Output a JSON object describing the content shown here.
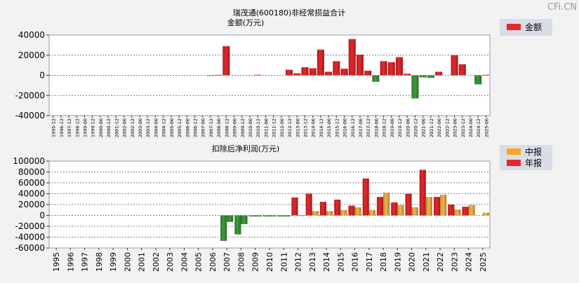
{
  "watermark": "CFi.CN",
  "chart_data": [
    {
      "type": "bar",
      "title": "瑞茂通(600180)非经常损益合计",
      "ylabel": "金额(万元)",
      "legend": [
        {
          "name": "金额",
          "color": "#e8272a"
        }
      ],
      "ylim": [
        -40000,
        40000
      ],
      "yticks": [
        40000,
        20000,
        0,
        -20000,
        -40000
      ],
      "ytick_labels": [
        "40000",
        "20000",
        "0",
        "-20000",
        "-40000"
      ],
      "categories": [
        "1995-12",
        "1996-12",
        "1997-12",
        "1998-12",
        "1999-06",
        "1999-12",
        "2000-06",
        "2000-12",
        "2001-12",
        "2002-06",
        "2002-12",
        "2003-06",
        "2003-12",
        "2004-06",
        "2004-12",
        "2005-06",
        "2005-12",
        "2006-06",
        "2006-12",
        "2007-06",
        "2007-12",
        "2008-06",
        "2008-12",
        "2009-06",
        "2009-12",
        "2010-06",
        "2010-12",
        "2011-06",
        "2011-12",
        "2012-06",
        "2012-12",
        "2013-06",
        "2013-12",
        "2014-06",
        "2014-12",
        "2015-06",
        "2015-12",
        "2016-06",
        "2016-12",
        "2017-06",
        "2017-12",
        "2018-06",
        "2018-12",
        "2019-06",
        "2019-12",
        "2020-06",
        "2020-12",
        "2021-06",
        "2021-12",
        "2022-06",
        "2022-12",
        "2023-06",
        "2023-12",
        "2024-06",
        "2024-12",
        "2025-06"
      ],
      "values": [
        0,
        0,
        0,
        0,
        0,
        0,
        0,
        0,
        0,
        0,
        0,
        0,
        0,
        0,
        0,
        0,
        0,
        0,
        0,
        0,
        -500,
        500,
        29000,
        0,
        0,
        0,
        600,
        0,
        0,
        0,
        5500,
        2000,
        8000,
        7000,
        25500,
        3500,
        14000,
        6500,
        36000,
        20500,
        4500,
        -6500,
        14000,
        13000,
        18000,
        1500,
        -23000,
        -2000,
        -2500,
        3500,
        0,
        20000,
        11000,
        0,
        -9000,
        500
      ]
    },
    {
      "type": "bar",
      "title": "扣除后净利润(万元)",
      "legend": [
        {
          "name": "中报",
          "color": "#f5a623"
        },
        {
          "name": "年报",
          "color": "#e8272a"
        }
      ],
      "ylim": [
        -60000,
        100000
      ],
      "yticks": [
        100000,
        80000,
        60000,
        40000,
        20000,
        0,
        -20000,
        -40000,
        -60000
      ],
      "ytick_labels": [
        "100000",
        "80000",
        "60000",
        "40000",
        "20000",
        "0",
        "-20000",
        "-40000",
        "-60000"
      ],
      "categories": [
        "1995",
        "1996",
        "1997",
        "1998",
        "1999",
        "2000",
        "2001",
        "2002",
        "2003",
        "2004",
        "2005",
        "2006",
        "2007",
        "2008",
        "2009",
        "2010",
        "2011",
        "2012",
        "2013",
        "2014",
        "2015",
        "2016",
        "2017",
        "2018",
        "2019",
        "2020",
        "2021",
        "2022",
        "2023",
        "2024",
        "2025"
      ],
      "series": [
        {
          "name": "年报",
          "values": [
            0,
            0,
            0,
            0,
            0,
            0,
            0,
            0,
            0,
            0,
            0,
            0,
            -47000,
            -35000,
            -2000,
            -2000,
            -2000,
            33000,
            40000,
            25000,
            29000,
            18000,
            68000,
            34000,
            24000,
            40000,
            84000,
            34000,
            20000,
            16000,
            null
          ]
        },
        {
          "name": "中报",
          "values": [
            null,
            null,
            null,
            null,
            null,
            null,
            null,
            null,
            null,
            null,
            null,
            null,
            -12000,
            -16000,
            -2000,
            -2000,
            -2000,
            -1000,
            8000,
            8000,
            10000,
            15000,
            10000,
            42000,
            19000,
            15000,
            34000,
            38000,
            11000,
            19000,
            5000
          ]
        }
      ]
    }
  ]
}
